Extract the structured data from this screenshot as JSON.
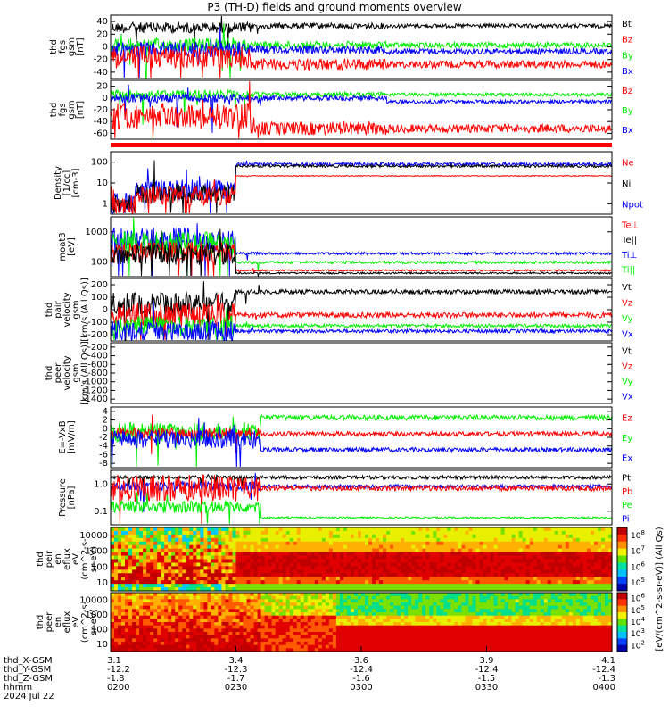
{
  "title": "P3 (TH-D) fields and ground moments overview",
  "colors": {
    "black": "#000000",
    "red": "#ff0000",
    "green": "#00ee00",
    "blue": "#0000ff"
  },
  "chart_data": [
    {
      "type": "line",
      "ylabel_lines": [
        "thd",
        "fgs",
        "gsm",
        "[nT]"
      ],
      "yticks": [
        "40",
        "20",
        "0",
        "-20",
        "-40"
      ],
      "ylim": [
        -50,
        50
      ],
      "legend": [
        {
          "name": "Bt",
          "color": "black"
        },
        {
          "name": "Bz",
          "color": "red"
        },
        {
          "name": "By",
          "color": "green"
        },
        {
          "name": "Bx",
          "color": "blue"
        }
      ]
    },
    {
      "type": "line",
      "ylabel_lines": [
        "thd",
        "fgs",
        "gsm",
        "[nT]"
      ],
      "yticks": [
        "20",
        "0",
        "-20",
        "-40",
        "-60"
      ],
      "ylim": [
        -75,
        25
      ],
      "legend": [
        {
          "name": "Bz",
          "color": "red"
        },
        {
          "name": "By",
          "color": "green"
        },
        {
          "name": "Bx",
          "color": "blue"
        }
      ]
    },
    {
      "type": "line",
      "ylabel_lines": [
        "Density",
        "[1/cc]",
        "[cm-3]"
      ],
      "yticks": [
        "100",
        "10",
        "1"
      ],
      "ylim": [
        0.5,
        150
      ],
      "legend": [
        {
          "name": "Ne",
          "color": "red"
        },
        {
          "name": "Ni",
          "color": "black"
        },
        {
          "name": "Npot",
          "color": "blue"
        }
      ]
    },
    {
      "type": "line",
      "ylabel_lines": [
        "moat3",
        "[eV]"
      ],
      "yticks": [
        "1000",
        "100"
      ],
      "ylim": [
        50,
        4000
      ],
      "legend": [
        {
          "name": "Te⊥",
          "color": "red"
        },
        {
          "name": "Te||",
          "color": "black"
        },
        {
          "name": "Ti⊥",
          "color": "blue"
        },
        {
          "name": "Ti||",
          "color": "green"
        }
      ]
    },
    {
      "type": "line",
      "ylabel_lines": [
        "thd",
        "pair",
        "velocity",
        "gsm",
        "[km/s (All Qs)]"
      ],
      "yticks": [
        "200",
        "100",
        "0",
        "-100",
        "-200"
      ],
      "ylim": [
        -230,
        250
      ],
      "legend": [
        {
          "name": "Vt",
          "color": "black"
        },
        {
          "name": "Vz",
          "color": "red"
        },
        {
          "name": "Vy",
          "color": "green"
        },
        {
          "name": "Vx",
          "color": "blue"
        }
      ]
    },
    {
      "type": "line",
      "ylabel_lines": [
        "thd",
        "peer",
        "velocity",
        "gsm",
        "[km/s (All Qs)]"
      ],
      "yticks": [
        "-200",
        "-400",
        "-600",
        "-800",
        "-1000",
        "-1200",
        "-1400"
      ],
      "ylim": [
        -1450,
        -170
      ],
      "legend": [
        {
          "name": "Vt",
          "color": "black"
        },
        {
          "name": "Vz",
          "color": "red"
        },
        {
          "name": "Vy",
          "color": "green"
        },
        {
          "name": "Vx",
          "color": "blue"
        }
      ]
    },
    {
      "type": "line",
      "ylabel_lines": [
        "E=-VxB",
        "[mV/m]"
      ],
      "yticks": [
        "4",
        "2",
        "0",
        "-2",
        "-4",
        "-6",
        "-8"
      ],
      "ylim": [
        -9,
        5
      ],
      "legend": [
        {
          "name": "Ez",
          "color": "red"
        },
        {
          "name": "Ey",
          "color": "green"
        },
        {
          "name": "Ex",
          "color": "blue"
        }
      ]
    },
    {
      "type": "line",
      "ylabel_lines": [
        "Pressure",
        "[nPa]"
      ],
      "yticks": [
        "1.0",
        "0.1"
      ],
      "ylim": [
        0.02,
        1.5
      ],
      "legend": [
        {
          "name": "Pt",
          "color": "black"
        },
        {
          "name": "Pb",
          "color": "red"
        },
        {
          "name": "Pe",
          "color": "green"
        },
        {
          "name": "Pi",
          "color": "blue"
        }
      ]
    },
    {
      "type": "heatmap",
      "ylabel_lines": [
        "thd",
        "peir",
        "en",
        "eflux",
        "eV",
        "(cm^2-s-",
        "sr-eV)"
      ],
      "yticks": [
        "10000",
        "1000",
        "100",
        "10"
      ],
      "ylim": [
        7,
        25000
      ]
    },
    {
      "type": "heatmap",
      "ylabel_lines": [
        "thd",
        "peer",
        "en",
        "eflux",
        "eV",
        "(cm^2-s-",
        "sr-eV)"
      ],
      "yticks": [
        "10000",
        "1000",
        "100",
        "10"
      ],
      "ylim": [
        7,
        25000
      ]
    }
  ],
  "colorbar": {
    "label": "[eV/(cm^2-s-sr-eV)] (All Qs)",
    "upper_ticks": [
      "10^8",
      "10^7",
      "10^6",
      "10^5"
    ],
    "lower_ticks": [
      "10^6",
      "10^5",
      "10^4",
      "10^3",
      "10^2"
    ]
  },
  "xaxis": {
    "row_labels": [
      "thd_X-GSM",
      "thd_Y-GSM",
      "thd_Z-GSM",
      "hhmm",
      "2024 Jul 22"
    ],
    "ticks": [
      {
        "x": "3.1",
        "y": "-12.2",
        "z": "-1.8",
        "hhmm": "0200"
      },
      {
        "x": "3.4",
        "y": "-12.3",
        "z": "-1.7",
        "hhmm": "0230"
      },
      {
        "x": "3.6",
        "y": "-12.4",
        "z": "-1.6",
        "hhmm": "0300"
      },
      {
        "x": "3.9",
        "y": "-12.4",
        "z": "-1.5",
        "hhmm": "0330"
      },
      {
        "x": "4.1",
        "y": "-12.4",
        "z": "-1.3",
        "hhmm": "0400"
      }
    ]
  }
}
